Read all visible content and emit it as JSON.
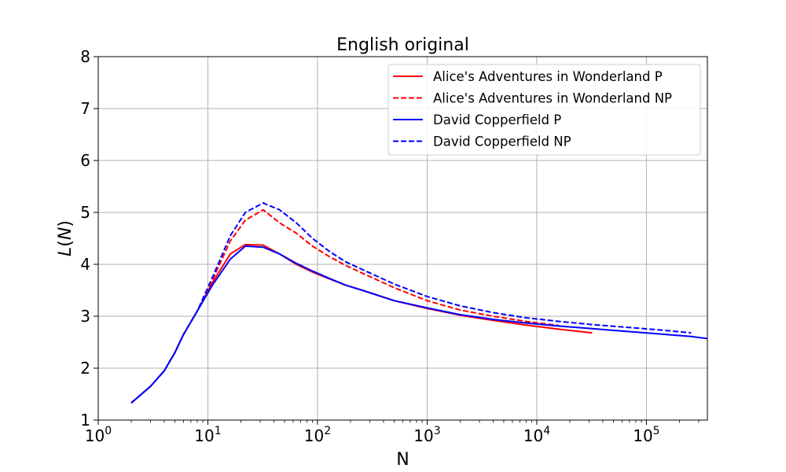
{
  "chart_data": {
    "type": "line",
    "title": "English original",
    "xlabel": "N",
    "ylabel_var": "L",
    "ylabel_arg": "N",
    "xscale": "log",
    "xlim": [
      1,
      360000
    ],
    "ylim": [
      1,
      8
    ],
    "x_tick_base": "10",
    "x_tick_exponents": [
      "0",
      "1",
      "2",
      "3",
      "4",
      "5"
    ],
    "y_ticks": [
      1,
      2,
      3,
      4,
      5,
      6,
      7,
      8
    ],
    "y_tick_labels": [
      "1",
      "2",
      "3",
      "4",
      "5",
      "6",
      "7",
      "8"
    ],
    "grid": true,
    "legend_position": "top-right",
    "series": [
      {
        "name": "Alice's Adventures in Wonderland P",
        "color": "#ff0000",
        "dash": "solid",
        "x": [
          2,
          3,
          4,
          5,
          6,
          8,
          11,
          16,
          22,
          32,
          45,
          64,
          90,
          128,
          180,
          256,
          500,
          1000,
          2000,
          4000,
          8000,
          16000,
          32000
        ],
        "y": [
          1.33,
          1.65,
          1.95,
          2.3,
          2.65,
          3.1,
          3.65,
          4.2,
          4.38,
          4.37,
          4.2,
          4.0,
          3.85,
          3.72,
          3.6,
          3.5,
          3.3,
          3.15,
          3.02,
          2.92,
          2.83,
          2.75,
          2.68
        ]
      },
      {
        "name": "Alice's Adventures in Wonderland NP",
        "color": "#ff0000",
        "dash": "dashed",
        "x": [
          2,
          3,
          4,
          5,
          6,
          8,
          11,
          16,
          22,
          32,
          45,
          64,
          90,
          128,
          180,
          256,
          500,
          1000,
          2000,
          4000,
          8000,
          16000
        ],
        "y": [
          1.33,
          1.65,
          1.95,
          2.3,
          2.65,
          3.1,
          3.7,
          4.45,
          4.85,
          5.05,
          4.8,
          4.6,
          4.35,
          4.15,
          3.98,
          3.83,
          3.55,
          3.3,
          3.12,
          3.0,
          2.9,
          2.82
        ]
      },
      {
        "name": "David Copperfield P",
        "color": "#0000ff",
        "dash": "solid",
        "x": [
          2,
          3,
          4,
          5,
          6,
          8,
          11,
          16,
          22,
          32,
          45,
          64,
          90,
          128,
          180,
          256,
          500,
          1000,
          2000,
          4000,
          8000,
          16000,
          32000,
          64000,
          128000,
          256000,
          360000
        ],
        "y": [
          1.33,
          1.65,
          1.95,
          2.3,
          2.65,
          3.1,
          3.6,
          4.1,
          4.35,
          4.33,
          4.2,
          4.02,
          3.87,
          3.73,
          3.6,
          3.5,
          3.3,
          3.16,
          3.03,
          2.94,
          2.87,
          2.81,
          2.76,
          2.71,
          2.66,
          2.61,
          2.57
        ]
      },
      {
        "name": "David Copperfield NP",
        "color": "#0000ff",
        "dash": "dashed",
        "x": [
          2,
          3,
          4,
          5,
          6,
          8,
          11,
          16,
          22,
          32,
          45,
          64,
          90,
          128,
          180,
          256,
          500,
          1000,
          2000,
          4000,
          8000,
          16000,
          32000,
          64000,
          128000,
          256000
        ],
        "y": [
          1.33,
          1.65,
          1.95,
          2.3,
          2.65,
          3.1,
          3.75,
          4.55,
          5.0,
          5.18,
          5.05,
          4.8,
          4.5,
          4.25,
          4.05,
          3.9,
          3.62,
          3.38,
          3.2,
          3.07,
          2.97,
          2.9,
          2.84,
          2.79,
          2.74,
          2.68
        ]
      }
    ]
  }
}
